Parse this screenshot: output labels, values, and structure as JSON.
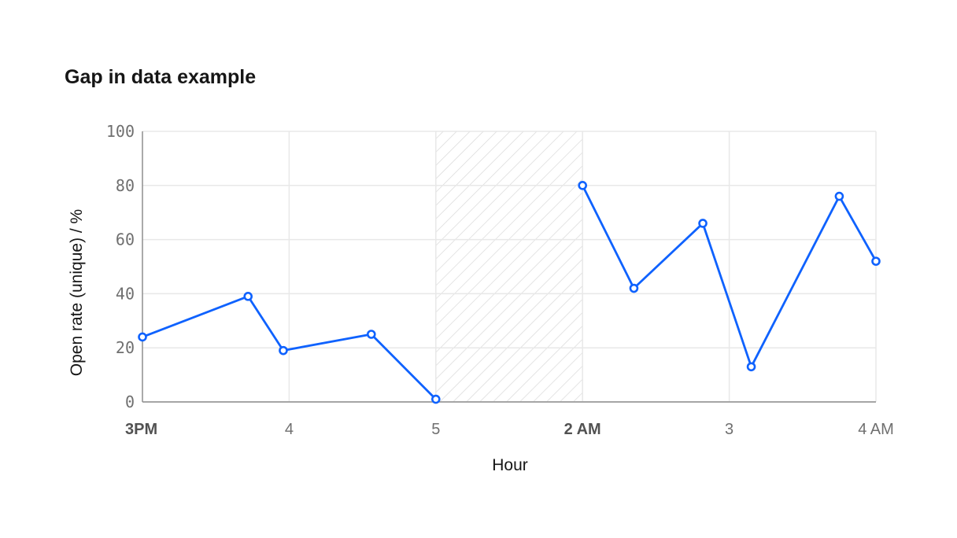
{
  "chart_data": {
    "type": "line",
    "title": "Gap in data example",
    "xlabel": "Hour",
    "ylabel": "Open rate (unique) / %",
    "ylim": [
      0,
      100
    ],
    "yticks": [
      0,
      20,
      40,
      60,
      80,
      100
    ],
    "xticks": [
      {
        "label": "3PM",
        "x": 0,
        "bold": true
      },
      {
        "label": "4",
        "x": 1,
        "bold": false
      },
      {
        "label": "5",
        "x": 2,
        "bold": false
      },
      {
        "label": "2 AM",
        "x": 3,
        "bold": true
      },
      {
        "label": "3",
        "x": 4,
        "bold": false
      },
      {
        "label": "4 AM",
        "x": 5,
        "bold": false
      }
    ],
    "xlim": [
      0,
      5
    ],
    "grid": true,
    "gap": {
      "from": 2,
      "to": 3
    },
    "series_color": "#0f62fe",
    "series": [
      {
        "segments": [
          [
            {
              "x": 0,
              "y": 24
            },
            {
              "x": 0.72,
              "y": 39
            },
            {
              "x": 0.96,
              "y": 19
            },
            {
              "x": 1.56,
              "y": 25
            },
            {
              "x": 2,
              "y": 1
            }
          ],
          [
            {
              "x": 3,
              "y": 80
            },
            {
              "x": 3.35,
              "y": 42
            },
            {
              "x": 3.82,
              "y": 66
            },
            {
              "x": 4.15,
              "y": 13
            },
            {
              "x": 4.75,
              "y": 76
            },
            {
              "x": 5,
              "y": 52
            }
          ]
        ]
      }
    ]
  }
}
